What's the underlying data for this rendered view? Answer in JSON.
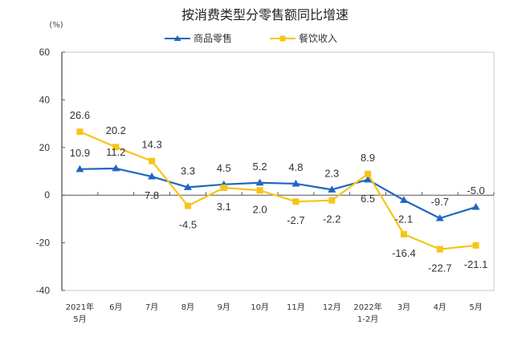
{
  "chart_data": {
    "type": "line",
    "title": "按消费类型分零售额同比增速",
    "ylabel": "(%)",
    "xlabel": "",
    "ylim": [
      -40,
      60
    ],
    "yticks": [
      -40,
      -20,
      0,
      20,
      40,
      60
    ],
    "ytick_labels": [
      "-40",
      "-20",
      "0",
      "20",
      "40",
      "60"
    ],
    "categories": [
      [
        "2021年",
        "5月"
      ],
      [
        "6月"
      ],
      [
        "7月"
      ],
      [
        "8月"
      ],
      [
        "9月"
      ],
      [
        "10月"
      ],
      [
        "11月"
      ],
      [
        "12月"
      ],
      [
        "2022年",
        "1-2月"
      ],
      [
        "3月"
      ],
      [
        "4月"
      ],
      [
        "5月"
      ]
    ],
    "legend_position": "top-center",
    "grid": false,
    "series": [
      {
        "name": "商品零售",
        "color": "#1f66c1",
        "marker": "triangle",
        "values": [
          10.9,
          11.2,
          7.8,
          3.3,
          4.5,
          5.2,
          4.8,
          2.3,
          6.5,
          -2.1,
          -9.7,
          -5.0
        ],
        "labels": [
          "10.9",
          "11.2",
          "7.8",
          "3.3",
          "4.5",
          "5.2",
          "4.8",
          "2.3",
          "6.5",
          "-2.1",
          "-9.7",
          "-5.0"
        ],
        "label_side": [
          "above",
          "above",
          "below",
          "above",
          "above",
          "above",
          "above",
          "above",
          "below",
          "below",
          "above",
          "above"
        ]
      },
      {
        "name": "餐饮收入",
        "color": "#f5c518",
        "marker": "square",
        "values": [
          26.6,
          20.2,
          14.3,
          -4.5,
          3.1,
          2.0,
          -2.7,
          -2.2,
          8.9,
          -16.4,
          -22.7,
          -21.1
        ],
        "labels": [
          "26.6",
          "20.2",
          "14.3",
          "-4.5",
          "3.1",
          "2.0",
          "-2.7",
          "-2.2",
          "8.9",
          "-16.4",
          "-22.7",
          "-21.1"
        ],
        "label_side": [
          "above",
          "above",
          "above",
          "below",
          "below",
          "below",
          "below",
          "below",
          "above",
          "below",
          "below",
          "below"
        ]
      }
    ]
  }
}
